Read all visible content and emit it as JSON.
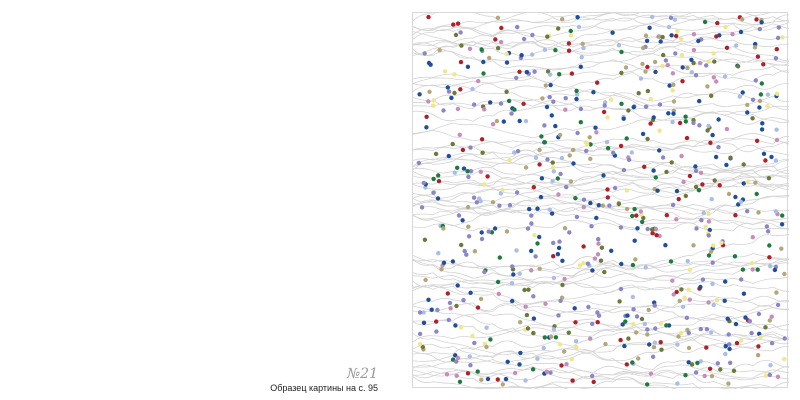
{
  "caption": {
    "number": "№21",
    "text": "Образец картины на с. 95"
  },
  "artwork": {
    "type": "connect-the-dots color-by-number",
    "line_color": "#d4d4d4",
    "dot_colors": [
      "#1f4e9c",
      "#1f4e9c",
      "#1e7a3e",
      "#8a86c8",
      "#8a86c8",
      "#a9bde6",
      "#6b7a3a",
      "#f0e68a",
      "#c98bb9",
      "#b0202a",
      "#b5a67a"
    ]
  }
}
